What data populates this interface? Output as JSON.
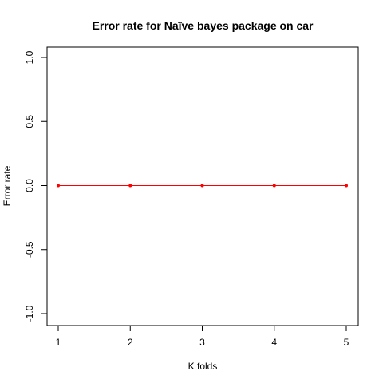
{
  "chart_data": {
    "type": "line",
    "title": "Error rate for Naïve bayes package on car",
    "xlabel": "K folds",
    "ylabel": "Error rate",
    "x": [
      1,
      2,
      3,
      4,
      5
    ],
    "series": [
      {
        "values": [
          0,
          0,
          0,
          0,
          0
        ],
        "color": "#ff0000"
      }
    ],
    "xlim": [
      1,
      5
    ],
    "ylim": [
      -1,
      1
    ],
    "x_ticks": [
      "1",
      "2",
      "3",
      "4",
      "5"
    ],
    "y_ticks": [
      "-1.0",
      "-0.5",
      "0.0",
      "0.5",
      "1.0"
    ],
    "grid": false
  }
}
